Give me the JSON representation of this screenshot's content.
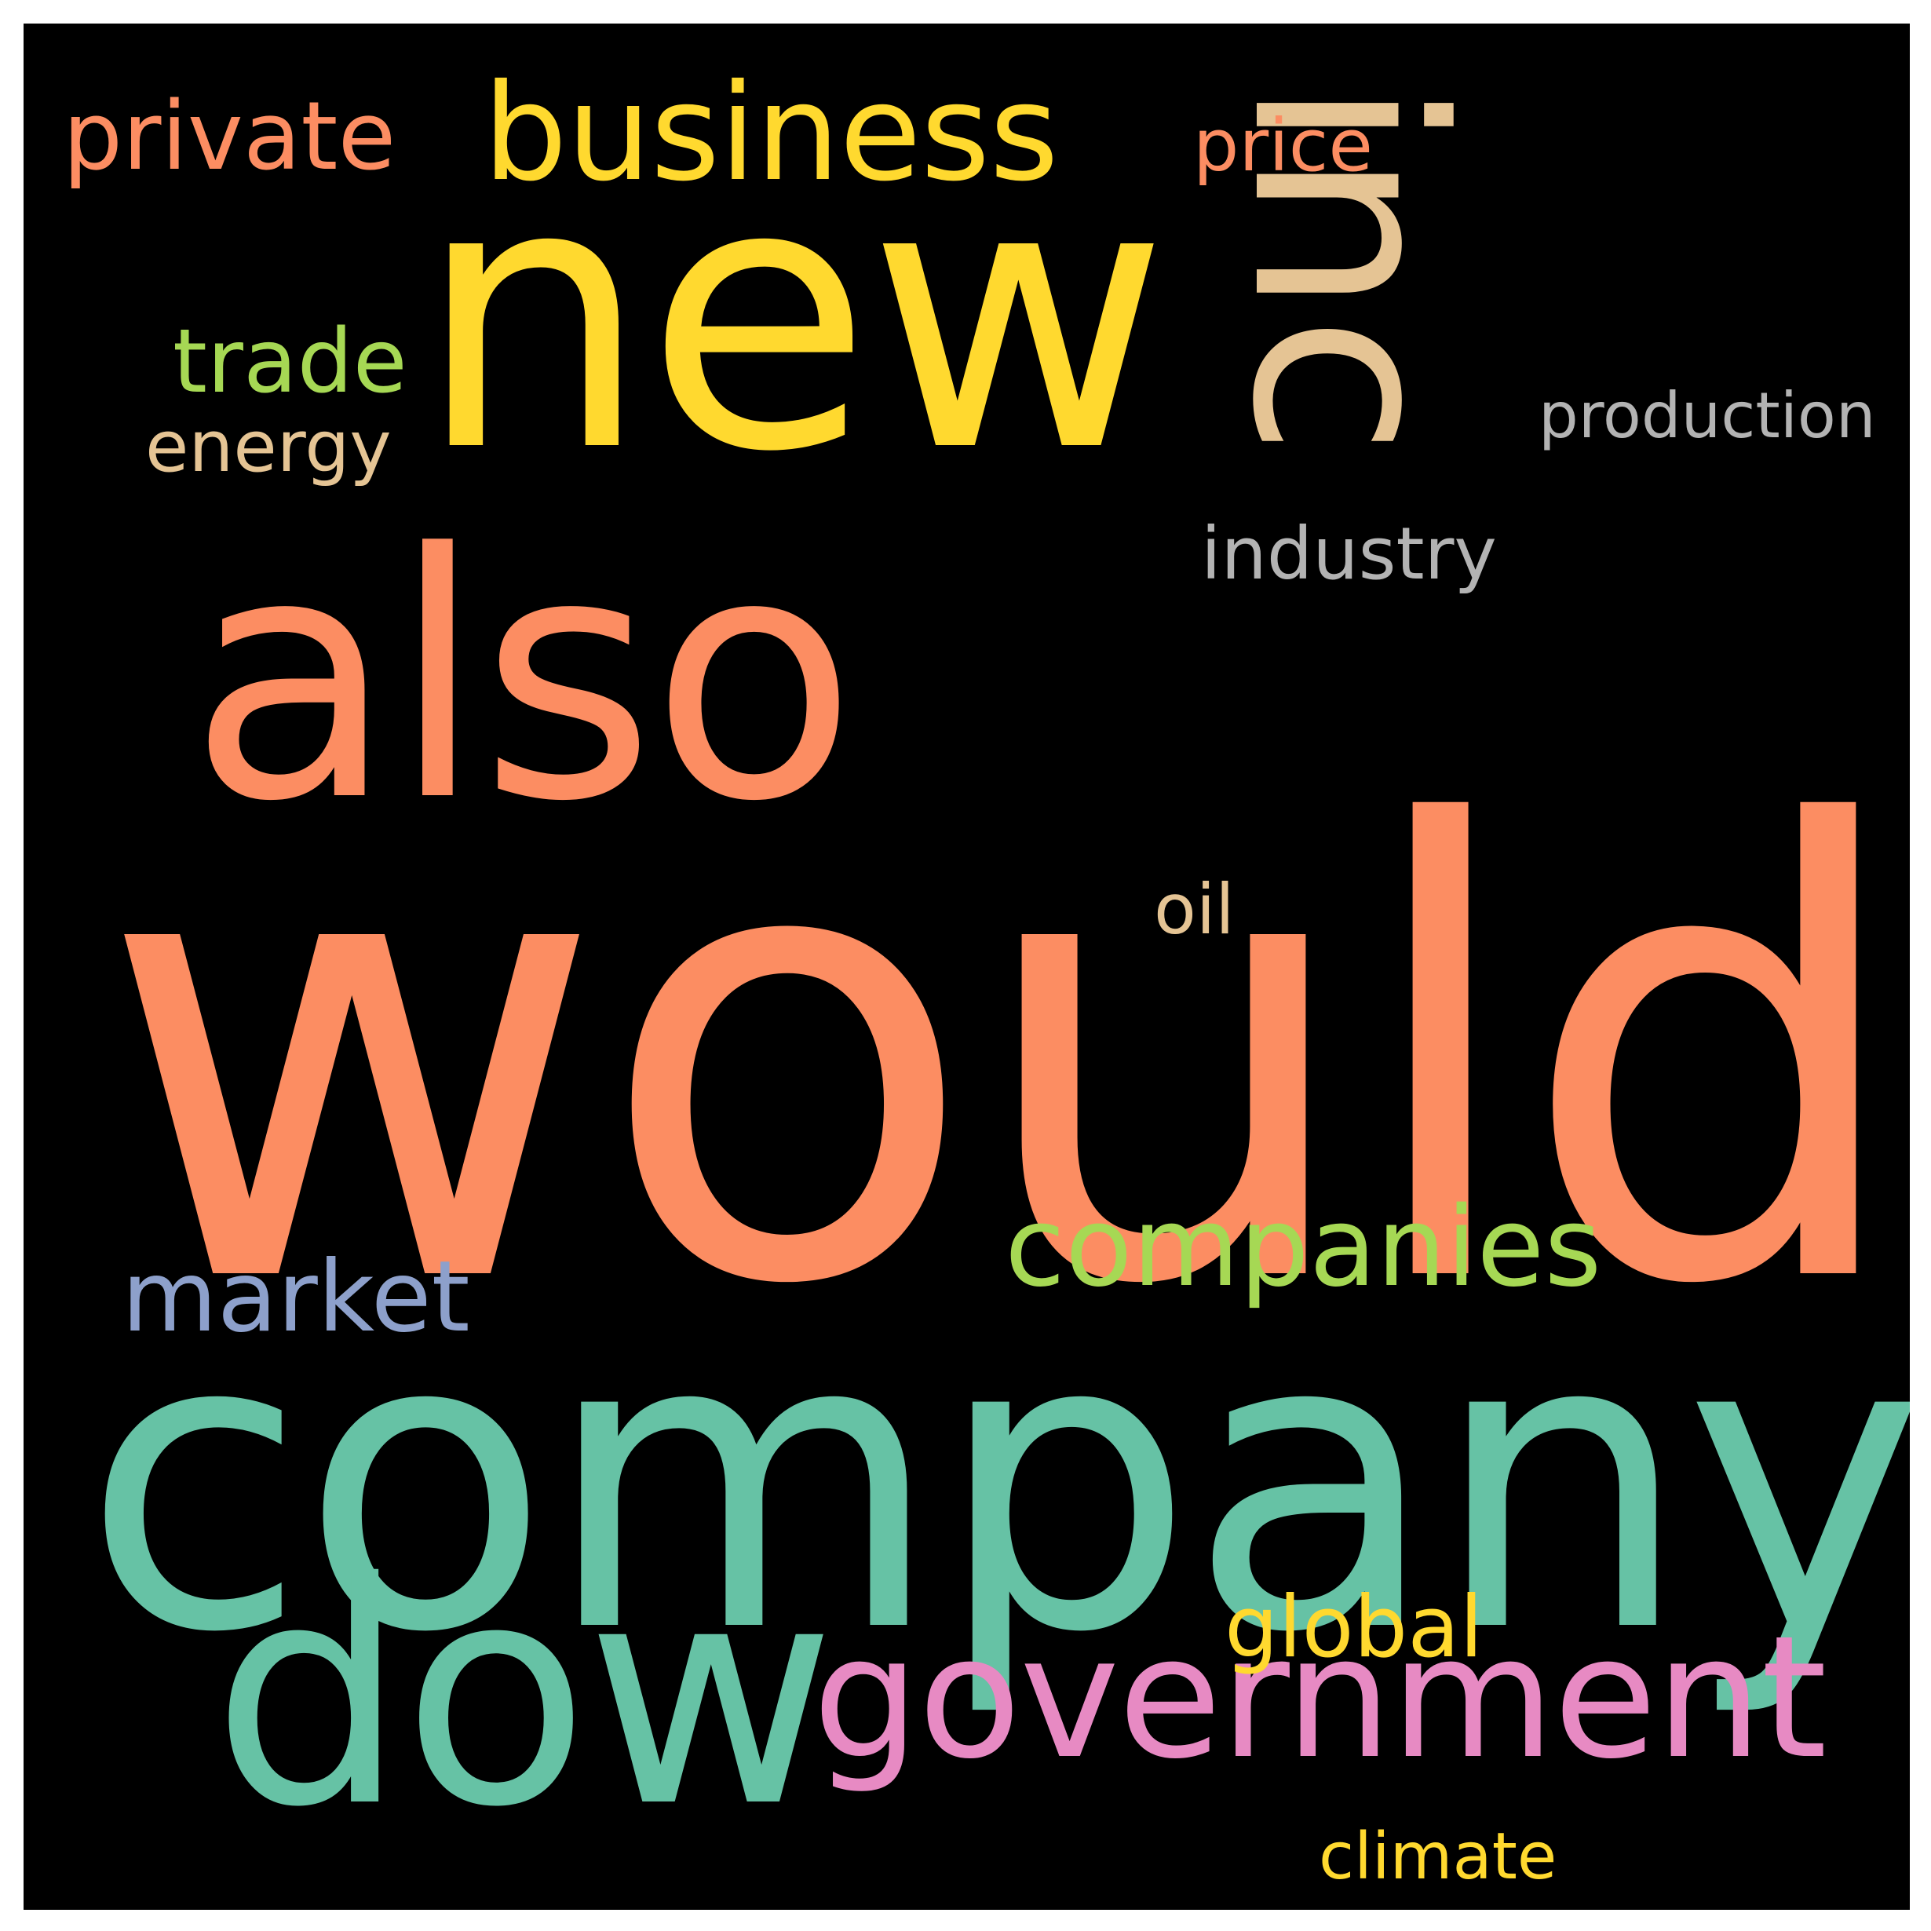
{
  "words": {
    "would": {
      "text": "would",
      "color": "#FC8D62"
    },
    "company": {
      "text": "company",
      "color": "#66C2A5"
    },
    "also": {
      "text": "also",
      "color": "#FC8D62"
    },
    "new": {
      "text": "new",
      "color": "#FFD92F"
    },
    "inc": {
      "text": "inc",
      "color": "#E5C494"
    },
    "dow": {
      "text": "dow",
      "color": "#66C2A5"
    },
    "government": {
      "text": "government",
      "color": "#E78AC3"
    },
    "business": {
      "text": "business",
      "color": "#FFD92F"
    },
    "companies": {
      "text": "companies",
      "color": "#A6D854"
    },
    "private": {
      "text": "private",
      "color": "#FC8D62"
    },
    "market": {
      "text": "market",
      "color": "#8DA0CB"
    },
    "trade": {
      "text": "trade",
      "color": "#A6D854"
    },
    "global": {
      "text": "global",
      "color": "#FFD92F"
    },
    "energy": {
      "text": "energy",
      "color": "#E5C494"
    },
    "price": {
      "text": "price",
      "color": "#FC8D62"
    },
    "production": {
      "text": "production",
      "color": "#B3B3B3"
    },
    "industry": {
      "text": "industry",
      "color": "#B3B3B3"
    },
    "oil": {
      "text": "oil",
      "color": "#E5C494"
    },
    "climate": {
      "text": "climate",
      "color": "#FFD92F"
    }
  }
}
